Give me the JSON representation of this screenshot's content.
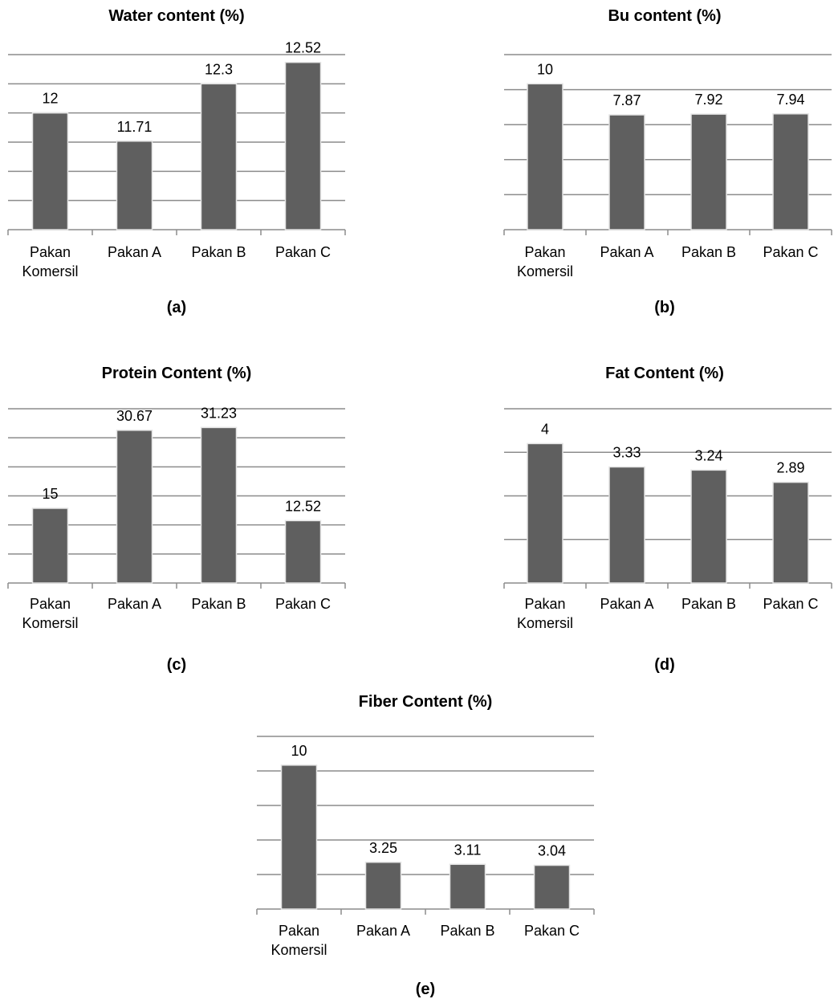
{
  "chart_data": [
    {
      "type": "bar",
      "title": "Water content (%)",
      "panel_label": "(a)",
      "categories": [
        "Pakan Komersil",
        "Pakan A",
        "Pakan B",
        "Pakan C"
      ],
      "values": [
        12,
        11.71,
        12.3,
        12.52
      ],
      "value_labels": [
        "12",
        "11.71",
        "12.3",
        "12.52"
      ],
      "ylim": [
        10.8,
        12.6
      ],
      "grid": true,
      "legend": "none",
      "bar_color": "#5f5f5f"
    },
    {
      "type": "bar",
      "title": "Bu content (%)",
      "panel_label": "(b)",
      "categories": [
        "Pakan Komersil",
        "Pakan A",
        "Pakan B",
        "Pakan C"
      ],
      "values": [
        10,
        7.87,
        7.92,
        7.94
      ],
      "value_labels": [
        "10",
        "7.87",
        "7.92",
        "7.94"
      ],
      "ylim": [
        0,
        12
      ],
      "grid": true,
      "legend": "none",
      "bar_color": "#5f5f5f"
    },
    {
      "type": "bar",
      "title": "Protein Content (%)",
      "panel_label": "(c)",
      "categories": [
        "Pakan Komersil",
        "Pakan A",
        "Pakan B",
        "Pakan C"
      ],
      "values": [
        15,
        30.67,
        31.23,
        12.52
      ],
      "value_labels": [
        "15",
        "30.67",
        "31.23",
        "12.52"
      ],
      "ylim": [
        0,
        35
      ],
      "grid": true,
      "legend": "none",
      "bar_color": "#5f5f5f"
    },
    {
      "type": "bar",
      "title": "Fat Content (%)",
      "panel_label": "(d)",
      "categories": [
        "Pakan Komersil",
        "Pakan A",
        "Pakan B",
        "Pakan C"
      ],
      "values": [
        4,
        3.33,
        3.24,
        2.89
      ],
      "value_labels": [
        "4",
        "3.33",
        "3.24",
        "2.89"
      ],
      "ylim": [
        0,
        5
      ],
      "grid": true,
      "legend": "none",
      "bar_color": "#5f5f5f"
    },
    {
      "type": "bar",
      "title": "Fiber Content (%)",
      "panel_label": "(e)",
      "categories": [
        "Pakan Komersil",
        "Pakan A",
        "Pakan B",
        "Pakan C"
      ],
      "values": [
        10,
        3.25,
        3.11,
        3.04
      ],
      "value_labels": [
        "10",
        "3.25",
        "3.11",
        "3.04"
      ],
      "ylim": [
        0,
        12
      ],
      "grid": true,
      "legend": "none",
      "bar_color": "#5f5f5f"
    }
  ]
}
